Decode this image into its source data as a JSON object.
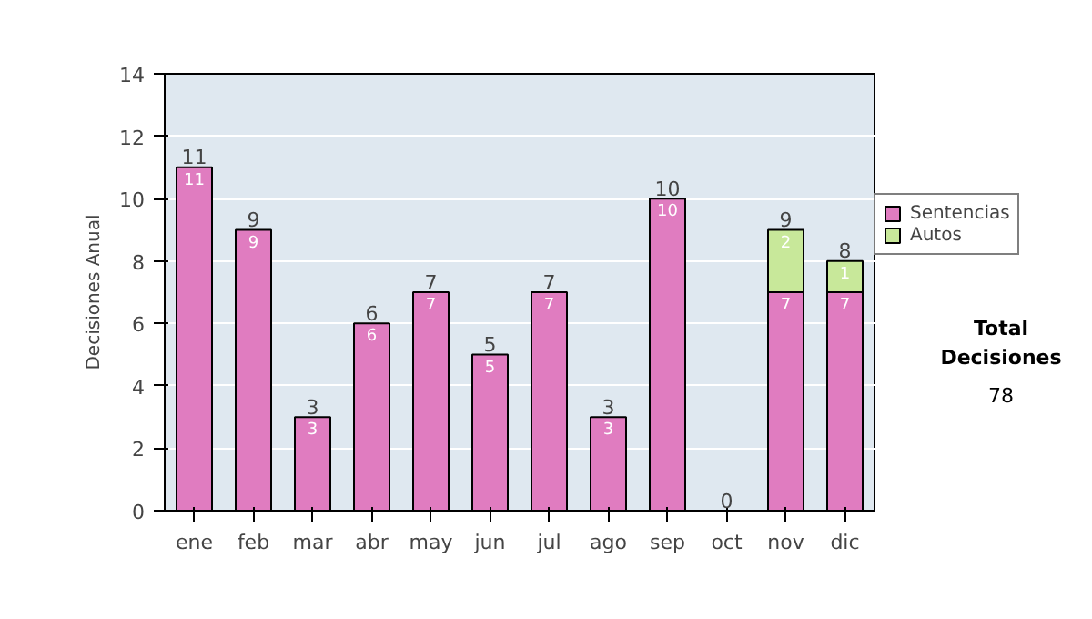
{
  "chart_data": {
    "type": "bar",
    "stacked": true,
    "ylabel": "Decisiones Anual",
    "categories": [
      "ene",
      "feb",
      "mar",
      "abr",
      "may",
      "jun",
      "jul",
      "ago",
      "sep",
      "oct",
      "nov",
      "dic"
    ],
    "series": [
      {
        "name": "Sentencias",
        "color": "#e07cc0",
        "values": [
          11,
          9,
          3,
          6,
          7,
          5,
          7,
          3,
          10,
          null,
          7,
          7
        ],
        "value_labels": [
          "11",
          "9",
          "3",
          "6",
          "7",
          "5",
          "7",
          "3",
          "10",
          null,
          "7",
          "7"
        ]
      },
      {
        "name": "Autos",
        "color": "#c8e89a",
        "values": [
          null,
          null,
          null,
          null,
          null,
          null,
          null,
          null,
          null,
          null,
          2,
          1
        ],
        "value_labels": [
          null,
          null,
          null,
          null,
          null,
          null,
          null,
          null,
          null,
          null,
          "2",
          "1"
        ]
      }
    ],
    "totals": [
      "11",
      "9",
      "3",
      "6",
      "7",
      "5",
      "7",
      "3",
      "10",
      "0",
      "9",
      "8"
    ],
    "ylim": [
      0,
      14
    ],
    "yticks": [
      0,
      2,
      4,
      6,
      8,
      10,
      12,
      14
    ],
    "grid": "y",
    "legend": "right",
    "annotations": [
      "Total Decisiones",
      "78"
    ]
  }
}
